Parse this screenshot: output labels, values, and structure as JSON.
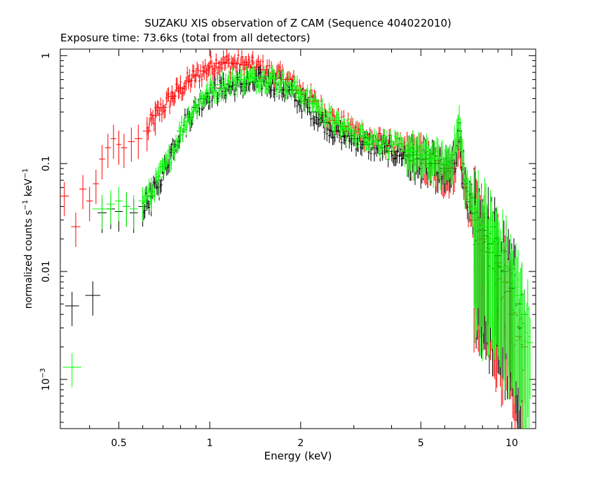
{
  "chart_data": {
    "type": "scatter",
    "title": "SUZAKU XIS observation of Z CAM (Sequence 404022010)",
    "subtitle": "Exposure time: 73.6ks (total from all detectors)",
    "xlabel": "Energy (keV)",
    "ylabel": "normalized counts s",
    "ylabel_sup1": "−1",
    "ylabel_mid": " keV",
    "ylabel_sup2": "−1",
    "x_scale": "log",
    "y_scale": "log",
    "xlim": [
      0.32,
      12.0
    ],
    "ylim": [
      0.00035,
      1.15
    ],
    "grid": false,
    "x_ticks": [
      {
        "value": 0.5,
        "label": "0.5"
      },
      {
        "value": 1,
        "label": "1"
      },
      {
        "value": 2,
        "label": "2"
      },
      {
        "value": 5,
        "label": "5"
      },
      {
        "value": 10,
        "label": "10"
      }
    ],
    "y_ticks": [
      {
        "value": 0.001,
        "label": "10",
        "sup": "−3"
      },
      {
        "value": 0.01,
        "label": "0.01",
        "sup": ""
      },
      {
        "value": 0.1,
        "label": "0.1",
        "sup": ""
      },
      {
        "value": 1,
        "label": "1",
        "sup": ""
      }
    ],
    "series": [
      {
        "color": "#ff0000",
        "points": [
          [
            0.33,
            0.05
          ],
          [
            0.36,
            0.026
          ],
          [
            0.38,
            0.058
          ],
          [
            0.4,
            0.045
          ],
          [
            0.42,
            0.065
          ],
          [
            0.44,
            0.11
          ],
          [
            0.46,
            0.14
          ],
          [
            0.48,
            0.17
          ],
          [
            0.5,
            0.15
          ],
          [
            0.52,
            0.14
          ],
          [
            0.55,
            0.16
          ],
          [
            0.58,
            0.17
          ],
          [
            0.62,
            0.2
          ],
          [
            0.66,
            0.28
          ],
          [
            0.7,
            0.33
          ],
          [
            0.75,
            0.42
          ],
          [
            0.8,
            0.5
          ],
          [
            0.85,
            0.58
          ],
          [
            0.9,
            0.65
          ],
          [
            0.95,
            0.72
          ],
          [
            1.0,
            0.8
          ],
          [
            1.05,
            0.85
          ],
          [
            1.1,
            0.86
          ],
          [
            1.2,
            0.85
          ],
          [
            1.3,
            0.82
          ],
          [
            1.4,
            0.78
          ],
          [
            1.5,
            0.74
          ],
          [
            1.6,
            0.68
          ],
          [
            1.8,
            0.6
          ],
          [
            2.0,
            0.48
          ],
          [
            2.2,
            0.38
          ],
          [
            2.4,
            0.3
          ],
          [
            2.6,
            0.25
          ],
          [
            2.8,
            0.22
          ],
          [
            3.0,
            0.2
          ],
          [
            3.3,
            0.18
          ],
          [
            3.6,
            0.16
          ],
          [
            4.0,
            0.15
          ],
          [
            4.5,
            0.13
          ],
          [
            5.0,
            0.12
          ],
          [
            5.5,
            0.1
          ],
          [
            6.0,
            0.085
          ],
          [
            6.4,
            0.09
          ],
          [
            6.7,
            0.16
          ],
          [
            7.0,
            0.06
          ],
          [
            7.5,
            0.03
          ],
          [
            8.0,
            0.02
          ],
          [
            8.5,
            0.015
          ],
          [
            9.0,
            0.012
          ],
          [
            9.5,
            0.008
          ],
          [
            10.0,
            0.004
          ],
          [
            10.5,
            0.0025
          ],
          [
            11.0,
            0.002
          ]
        ]
      },
      {
        "color": "#000000",
        "points": [
          [
            0.35,
            0.0048
          ],
          [
            0.41,
            0.006
          ],
          [
            0.44,
            0.035
          ],
          [
            0.47,
            0.038
          ],
          [
            0.5,
            0.036
          ],
          [
            0.53,
            0.04
          ],
          [
            0.56,
            0.035
          ],
          [
            0.6,
            0.04
          ],
          [
            0.64,
            0.05
          ],
          [
            0.68,
            0.07
          ],
          [
            0.72,
            0.1
          ],
          [
            0.76,
            0.15
          ],
          [
            0.8,
            0.2
          ],
          [
            0.85,
            0.27
          ],
          [
            0.9,
            0.33
          ],
          [
            0.95,
            0.4
          ],
          [
            1.0,
            0.45
          ],
          [
            1.1,
            0.5
          ],
          [
            1.2,
            0.53
          ],
          [
            1.3,
            0.55
          ],
          [
            1.4,
            0.57
          ],
          [
            1.5,
            0.58
          ],
          [
            1.6,
            0.56
          ],
          [
            1.8,
            0.48
          ],
          [
            2.0,
            0.38
          ],
          [
            2.2,
            0.3
          ],
          [
            2.4,
            0.24
          ],
          [
            2.6,
            0.2
          ],
          [
            2.8,
            0.18
          ],
          [
            3.0,
            0.17
          ],
          [
            3.3,
            0.15
          ],
          [
            3.6,
            0.14
          ],
          [
            4.0,
            0.13
          ],
          [
            4.5,
            0.12
          ],
          [
            5.0,
            0.11
          ],
          [
            5.5,
            0.1
          ],
          [
            6.0,
            0.09
          ],
          [
            6.4,
            0.1
          ],
          [
            6.7,
            0.2
          ],
          [
            7.0,
            0.065
          ],
          [
            7.5,
            0.035
          ],
          [
            8.0,
            0.024
          ],
          [
            8.5,
            0.018
          ],
          [
            9.0,
            0.014
          ],
          [
            9.5,
            0.01
          ],
          [
            10.0,
            0.007
          ],
          [
            10.5,
            0.005
          ],
          [
            11.0,
            0.004
          ]
        ]
      },
      {
        "color": "#00ff00",
        "points": [
          [
            0.35,
            0.0013
          ],
          [
            0.44,
            0.038
          ],
          [
            0.47,
            0.042
          ],
          [
            0.5,
            0.045
          ],
          [
            0.53,
            0.04
          ],
          [
            0.56,
            0.038
          ],
          [
            0.6,
            0.045
          ],
          [
            0.64,
            0.055
          ],
          [
            0.68,
            0.075
          ],
          [
            0.72,
            0.1
          ],
          [
            0.76,
            0.14
          ],
          [
            0.8,
            0.2
          ],
          [
            0.85,
            0.27
          ],
          [
            0.9,
            0.34
          ],
          [
            0.95,
            0.42
          ],
          [
            1.0,
            0.48
          ],
          [
            1.1,
            0.54
          ],
          [
            1.2,
            0.58
          ],
          [
            1.3,
            0.6
          ],
          [
            1.4,
            0.62
          ],
          [
            1.5,
            0.64
          ],
          [
            1.6,
            0.62
          ],
          [
            1.8,
            0.55
          ],
          [
            2.0,
            0.45
          ],
          [
            2.2,
            0.36
          ],
          [
            2.4,
            0.29
          ],
          [
            2.6,
            0.24
          ],
          [
            2.8,
            0.21
          ],
          [
            3.0,
            0.2
          ],
          [
            3.3,
            0.18
          ],
          [
            3.6,
            0.16
          ],
          [
            4.0,
            0.15
          ],
          [
            4.5,
            0.13
          ],
          [
            5.0,
            0.12
          ],
          [
            5.5,
            0.11
          ],
          [
            6.0,
            0.1
          ],
          [
            6.4,
            0.12
          ],
          [
            6.7,
            0.24
          ],
          [
            7.0,
            0.07
          ],
          [
            7.5,
            0.038
          ],
          [
            8.0,
            0.026
          ],
          [
            8.5,
            0.02
          ],
          [
            9.0,
            0.015
          ],
          [
            9.5,
            0.011
          ],
          [
            10.0,
            0.008
          ],
          [
            10.5,
            0.006
          ],
          [
            11.0,
            0.004
          ],
          [
            11.5,
            0.0022
          ]
        ]
      }
    ]
  }
}
